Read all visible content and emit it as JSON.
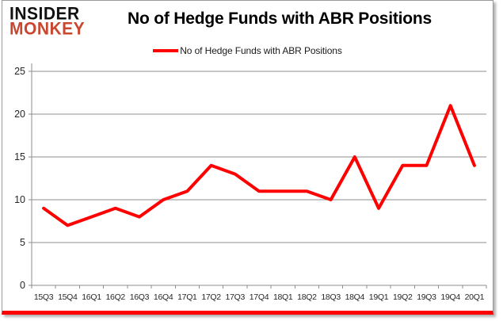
{
  "logo": {
    "line1": "INSIDER",
    "line2": "MONKEY",
    "line1_color": "#111111",
    "line2_color": "#c8482f"
  },
  "header": {
    "title": "No of Hedge Funds with ABR Positions"
  },
  "legend": {
    "label": "No of Hedge Funds with ABR Positions",
    "swatch_color": "#ff0000"
  },
  "colors": {
    "series_line": "#ff0000",
    "gridline": "#8c8c8c",
    "axis": "#8c8c8c",
    "tick_text": "#262626",
    "card_border": "#9a9a9a",
    "card_bottom_bar": "#ff0000",
    "background": "#ffffff"
  },
  "chart_data": {
    "type": "line",
    "title": "No of Hedge Funds with ABR Positions",
    "categories": [
      "15Q3",
      "15Q4",
      "16Q1",
      "16Q2",
      "16Q3",
      "16Q4",
      "17Q1",
      "17Q2",
      "17Q3",
      "17Q4",
      "18Q1",
      "18Q2",
      "18Q3",
      "18Q4",
      "19Q1",
      "19Q2",
      "19Q3",
      "19Q4",
      "20Q1"
    ],
    "series": [
      {
        "name": "No of Hedge Funds with ABR Positions",
        "color": "#ff0000",
        "values": [
          9,
          7,
          8,
          9,
          8,
          10,
          11,
          14,
          13,
          11,
          11,
          11,
          10,
          15,
          9,
          14,
          14,
          21,
          14
        ]
      }
    ],
    "xlabel": "",
    "ylabel": "",
    "ylim": [
      0,
      25
    ],
    "yticks": [
      0,
      5,
      10,
      15,
      20,
      25
    ],
    "grid": true,
    "legend_position": "top-center"
  }
}
